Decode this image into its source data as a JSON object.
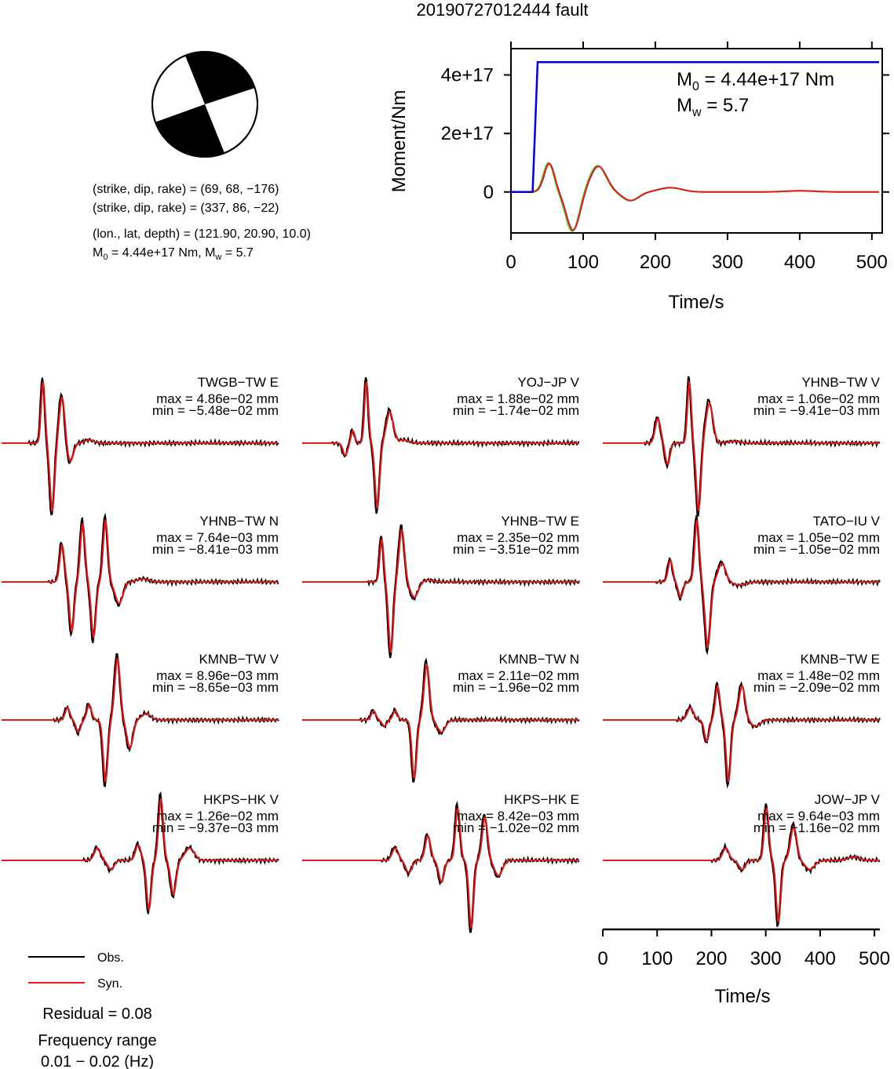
{
  "title": "20190727012444 fault",
  "mechanism": {
    "planes": [
      {
        "strike": 69,
        "dip": 68,
        "rake": -176
      },
      {
        "strike": 337,
        "dip": 86,
        "rake": -22
      }
    ],
    "lines": [
      "(strike, dip, rake) = (69, 68, −176)",
      "(strike, dip, rake) = (337, 86, −22)",
      "(lon., lat, depth) = (121.90, 20.90, 10.0)"
    ],
    "moment_prefix": "M",
    "moment_sub": "0",
    "moment_mid": " = 4.44e+17 Nm, M",
    "moment_sub2": "w",
    "moment_end": " = 5.7",
    "lon": 121.9,
    "lat": 20.9,
    "depth": 10.0,
    "M0_Nm": 4.44e+17,
    "Mw": 5.7
  },
  "legend": {
    "obs": "Obs.",
    "syn": "Syn."
  },
  "residual": "Residual = 0.08",
  "freq_line1": "Frequency range",
  "freq_line2": "0.01 − 0.02 (Hz)",
  "colors": {
    "obs": "#000000",
    "syn": "#e41a1c",
    "moment": "#0000cc",
    "src_green": "#33cc33",
    "src_red": "#e41a1c"
  },
  "chart_data": [
    {
      "type": "line",
      "xlabel": "Time/s",
      "ylabel": "Moment/Nm",
      "xlim": [
        0,
        510
      ],
      "ylim": [
        -1.4e+17,
        4.9e+17
      ],
      "xticks": [
        0,
        100,
        200,
        300,
        400,
        500
      ],
      "yticks": [
        {
          "v": 0,
          "label": "0"
        },
        {
          "v": 2e+17,
          "label": "2e+17"
        },
        {
          "v": 4e+17,
          "label": "4e+17"
        }
      ],
      "annot_m0": {
        "pre": "M",
        "sub": "0",
        "post": " = 4.44e+17 Nm"
      },
      "annot_mw": {
        "pre": "M",
        "sub": "w",
        "post": " = 5.7"
      },
      "moment_series": {
        "x": [
          0,
          30,
          37,
          510
        ],
        "y": [
          0,
          0,
          4.44e+17,
          4.44e+17
        ]
      },
      "source_pulses": [
        {
          "t": 52,
          "a": 1.0,
          "w": 10
        },
        {
          "t": 85,
          "a": -1.35,
          "w": 13
        },
        {
          "t": 120,
          "a": 0.9,
          "w": 16
        },
        {
          "t": 165,
          "a": -0.3,
          "w": 16
        },
        {
          "t": 220,
          "a": 0.15,
          "w": 22
        },
        {
          "t": 400,
          "a": 0.04,
          "w": 30
        }
      ],
      "source_scale": 1e+17
    },
    {
      "type": "line",
      "xlabel": "Time/s",
      "xlim": [
        0,
        510
      ],
      "xticks": [
        0,
        100,
        200,
        300,
        400,
        500
      ],
      "stations": [
        {
          "name": "TWGB−TW E",
          "max": "max = 4.86e−02 mm",
          "min": "min = −5.48e−02 mm",
          "pulses": [
            [
              75,
              1.0,
              5
            ],
            [
              92,
              -1.1,
              6
            ],
            [
              110,
              0.75,
              7
            ],
            [
              125,
              -0.3,
              8
            ],
            [
              160,
              0.05,
              12
            ]
          ]
        },
        {
          "name": "YOJ−JP V",
          "max": "max = 1.88e−02 mm",
          "min": "min = −1.74e−02 mm",
          "pulses": [
            [
              78,
              -0.2,
              6
            ],
            [
              92,
              0.2,
              5
            ],
            [
              117,
              1.0,
              5
            ],
            [
              137,
              -1.05,
              6
            ],
            [
              160,
              0.5,
              9
            ],
            [
              185,
              0.05,
              15
            ]
          ]
        },
        {
          "name": "YHNB−TW V",
          "max": "max = 1.06e−02 mm",
          "min": "min = −9.41e−03 mm",
          "pulses": [
            [
              100,
              0.4,
              7
            ],
            [
              118,
              -0.35,
              6
            ],
            [
              158,
              1.0,
              5
            ],
            [
              175,
              -1.1,
              6
            ],
            [
              195,
              0.65,
              9
            ],
            [
              240,
              0.03,
              15
            ]
          ]
        },
        {
          "name": "YHNB−TW N",
          "max": "max = 7.64e−03 mm",
          "min": "min = −8.41e−03 mm",
          "pulses": [
            [
              110,
              0.6,
              6
            ],
            [
              128,
              -0.8,
              6
            ],
            [
              148,
              0.95,
              6
            ],
            [
              168,
              -0.9,
              6
            ],
            [
              190,
              1.0,
              6
            ],
            [
              215,
              -0.35,
              10
            ],
            [
              260,
              0.05,
              15
            ]
          ]
        },
        {
          "name": "YHNB−TW E",
          "max": "max = 2.35e−02 mm",
          "min": "min = −3.51e−02 mm",
          "pulses": [
            [
              145,
              0.7,
              5
            ],
            [
              162,
              -1.15,
              6
            ],
            [
              182,
              0.85,
              7
            ],
            [
              205,
              -0.25,
              10
            ],
            [
              230,
              0.03,
              12
            ]
          ]
        },
        {
          "name": "TATO−IU V",
          "max": "max = 1.05e−02 mm",
          "min": "min = −1.05e−02 mm",
          "pulses": [
            [
              123,
              0.35,
              6
            ],
            [
              142,
              -0.25,
              6
            ],
            [
              172,
              1.0,
              6
            ],
            [
              192,
              -1.05,
              7
            ],
            [
              218,
              0.3,
              10
            ],
            [
              250,
              -0.05,
              15
            ]
          ]
        },
        {
          "name": "KMNB−TW V",
          "max": "max = 8.96e−03 mm",
          "min": "min = −8.65e−03 mm",
          "pulses": [
            [
              120,
              0.2,
              6
            ],
            [
              140,
              -0.2,
              6
            ],
            [
              160,
              0.25,
              6
            ],
            [
              190,
              -1.0,
              6
            ],
            [
              212,
              1.0,
              7
            ],
            [
              235,
              -0.45,
              8
            ],
            [
              265,
              0.1,
              12
            ]
          ]
        },
        {
          "name": "KMNB−TW N",
          "max": "max = 2.11e−02 mm",
          "min": "min = −1.96e−02 mm",
          "pulses": [
            [
              130,
              0.15,
              6
            ],
            [
              150,
              -0.1,
              6
            ],
            [
              170,
              0.15,
              6
            ],
            [
              205,
              -0.95,
              6
            ],
            [
              228,
              0.9,
              7
            ],
            [
              255,
              -0.2,
              10
            ]
          ]
        },
        {
          "name": "KMNB−TW E",
          "max": "max = 1.48e−02 mm",
          "min": "min = −2.09e−02 mm",
          "pulses": [
            [
              160,
              0.2,
              8
            ],
            [
              190,
              -0.35,
              6
            ],
            [
              210,
              0.55,
              6
            ],
            [
              230,
              -1.0,
              6
            ],
            [
              255,
              0.55,
              8
            ],
            [
              280,
              -0.1,
              12
            ]
          ]
        },
        {
          "name": "HKPS−HK V",
          "max": "max = 1.26e−02 mm",
          "min": "min = −9.37e−03 mm",
          "pulses": [
            [
              175,
              0.2,
              8
            ],
            [
              200,
              -0.15,
              8
            ],
            [
              250,
              0.25,
              7
            ],
            [
              270,
              -0.8,
              6
            ],
            [
              292,
              1.0,
              6
            ],
            [
              315,
              -0.55,
              7
            ],
            [
              345,
              0.2,
              12
            ]
          ]
        },
        {
          "name": "HKPS−HK E",
          "max": "max = 8.42e−03 mm",
          "min": "min = −1.02e−02 mm",
          "pulses": [
            [
              170,
              0.2,
              8
            ],
            [
              195,
              -0.2,
              8
            ],
            [
              230,
              0.4,
              7
            ],
            [
              255,
              -0.35,
              7
            ],
            [
              285,
              0.85,
              6
            ],
            [
              310,
              -1.1,
              6
            ],
            [
              335,
              0.7,
              7
            ],
            [
              360,
              -0.25,
              10
            ]
          ]
        },
        {
          "name": "JOW−JP V",
          "max": "max = 9.64e−03 mm",
          "min": "min = −1.16e−02 mm",
          "pulses": [
            [
              225,
              0.2,
              8
            ],
            [
              255,
              -0.15,
              8
            ],
            [
              300,
              0.85,
              6
            ],
            [
              322,
              -1.0,
              6
            ],
            [
              350,
              0.55,
              8
            ],
            [
              380,
              -0.15,
              12
            ],
            [
              460,
              0.05,
              15
            ]
          ]
        }
      ]
    }
  ]
}
